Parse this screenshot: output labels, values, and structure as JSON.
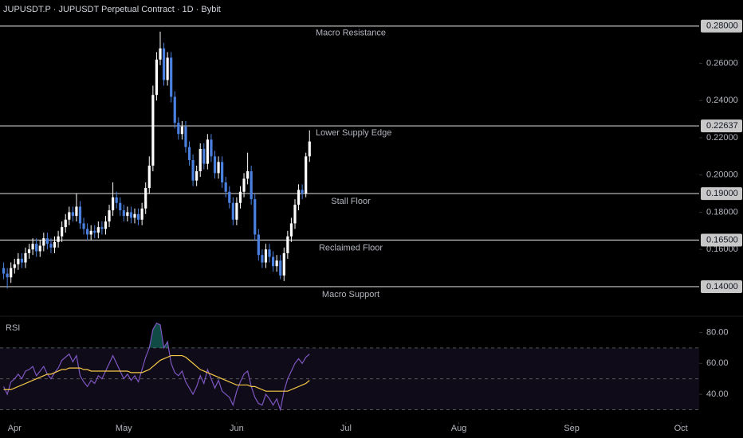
{
  "chart_data": [
    {
      "type": "candlestick",
      "title": "JUPUSDT.P · JUPUSDT Perpetual Contract · 1D · Bybit",
      "x": [
        -3,
        -2,
        -1,
        0,
        1,
        2,
        3,
        4,
        5,
        6,
        7,
        8,
        9,
        10,
        11,
        12,
        13,
        14,
        15,
        16,
        17,
        18,
        19,
        20,
        21,
        22,
        23,
        24,
        25,
        26,
        27,
        28,
        29,
        30,
        31,
        32,
        33,
        34,
        35,
        36,
        37,
        38,
        39,
        40,
        41,
        42,
        43,
        44,
        45,
        46,
        47,
        48,
        49,
        50,
        51,
        52,
        53,
        54,
        55,
        56,
        57,
        58,
        59,
        60,
        61,
        62,
        63,
        64,
        65,
        66,
        67,
        68,
        69,
        70,
        71,
        72,
        73,
        74,
        75,
        76,
        77,
        78,
        79,
        80,
        81
      ],
      "open": [
        0.15,
        0.147,
        0.145,
        0.15,
        0.152,
        0.155,
        0.153,
        0.158,
        0.16,
        0.163,
        0.159,
        0.162,
        0.166,
        0.163,
        0.161,
        0.164,
        0.167,
        0.172,
        0.176,
        0.18,
        0.178,
        0.183,
        0.174,
        0.171,
        0.168,
        0.17,
        0.169,
        0.172,
        0.171,
        0.175,
        0.181,
        0.188,
        0.185,
        0.181,
        0.178,
        0.18,
        0.177,
        0.179,
        0.176,
        0.182,
        0.193,
        0.205,
        0.243,
        0.262,
        0.268,
        0.251,
        0.263,
        0.242,
        0.228,
        0.222,
        0.226,
        0.215,
        0.208,
        0.197,
        0.202,
        0.214,
        0.206,
        0.219,
        0.21,
        0.201,
        0.207,
        0.196,
        0.191,
        0.185,
        0.176,
        0.185,
        0.191,
        0.198,
        0.202,
        0.187,
        0.168,
        0.157,
        0.153,
        0.16,
        0.156,
        0.151,
        0.154,
        0.146,
        0.158,
        0.167,
        0.174,
        0.184,
        0.192,
        0.19,
        0.21
      ],
      "high": [
        0.153,
        0.15,
        0.153,
        0.155,
        0.158,
        0.158,
        0.161,
        0.163,
        0.166,
        0.166,
        0.165,
        0.169,
        0.169,
        0.166,
        0.167,
        0.17,
        0.175,
        0.179,
        0.183,
        0.183,
        0.19,
        0.186,
        0.177,
        0.174,
        0.173,
        0.173,
        0.175,
        0.175,
        0.178,
        0.184,
        0.196,
        0.191,
        0.188,
        0.184,
        0.183,
        0.183,
        0.182,
        0.182,
        0.185,
        0.196,
        0.21,
        0.248,
        0.266,
        0.277,
        0.271,
        0.266,
        0.266,
        0.245,
        0.231,
        0.229,
        0.229,
        0.218,
        0.211,
        0.205,
        0.217,
        0.217,
        0.222,
        0.222,
        0.213,
        0.21,
        0.21,
        0.199,
        0.194,
        0.188,
        0.188,
        0.194,
        0.201,
        0.212,
        0.205,
        0.19,
        0.171,
        0.16,
        0.163,
        0.163,
        0.159,
        0.157,
        0.157,
        0.161,
        0.17,
        0.177,
        0.187,
        0.195,
        0.195,
        0.212,
        0.224
      ],
      "low": [
        0.144,
        0.139,
        0.142,
        0.147,
        0.149,
        0.15,
        0.15,
        0.155,
        0.157,
        0.156,
        0.156,
        0.159,
        0.16,
        0.158,
        0.158,
        0.161,
        0.164,
        0.169,
        0.173,
        0.175,
        0.175,
        0.171,
        0.168,
        0.165,
        0.165,
        0.166,
        0.166,
        0.168,
        0.168,
        0.172,
        0.178,
        0.182,
        0.178,
        0.175,
        0.175,
        0.174,
        0.174,
        0.173,
        0.173,
        0.179,
        0.19,
        0.202,
        0.24,
        0.259,
        0.248,
        0.248,
        0.239,
        0.225,
        0.219,
        0.219,
        0.212,
        0.205,
        0.194,
        0.194,
        0.199,
        0.203,
        0.203,
        0.207,
        0.198,
        0.198,
        0.193,
        0.188,
        0.182,
        0.173,
        0.173,
        0.182,
        0.188,
        0.195,
        0.184,
        0.165,
        0.154,
        0.15,
        0.15,
        0.153,
        0.148,
        0.148,
        0.144,
        0.143,
        0.155,
        0.164,
        0.171,
        0.181,
        0.187,
        0.188,
        0.207
      ],
      "close": [
        0.147,
        0.145,
        0.15,
        0.152,
        0.155,
        0.153,
        0.158,
        0.16,
        0.163,
        0.159,
        0.162,
        0.166,
        0.163,
        0.161,
        0.164,
        0.167,
        0.172,
        0.176,
        0.18,
        0.178,
        0.183,
        0.174,
        0.171,
        0.168,
        0.17,
        0.169,
        0.172,
        0.171,
        0.175,
        0.181,
        0.188,
        0.185,
        0.181,
        0.178,
        0.18,
        0.177,
        0.179,
        0.176,
        0.182,
        0.193,
        0.205,
        0.243,
        0.262,
        0.268,
        0.251,
        0.263,
        0.242,
        0.228,
        0.222,
        0.226,
        0.215,
        0.208,
        0.197,
        0.202,
        0.214,
        0.206,
        0.219,
        0.21,
        0.201,
        0.207,
        0.196,
        0.191,
        0.185,
        0.176,
        0.185,
        0.191,
        0.198,
        0.202,
        0.187,
        0.168,
        0.157,
        0.153,
        0.16,
        0.156,
        0.151,
        0.154,
        0.146,
        0.158,
        0.167,
        0.174,
        0.184,
        0.192,
        0.19,
        0.21,
        0.218
      ],
      "up_color": "#ffffff",
      "down_color": "#4a80e0",
      "xlim": [
        -4,
        188
      ],
      "xticks": [
        {
          "value": 0,
          "label": "Apr"
        },
        {
          "value": 30,
          "label": "May"
        },
        {
          "value": 61,
          "label": "Jun"
        },
        {
          "value": 91,
          "label": "Jul"
        },
        {
          "value": 122,
          "label": "Aug"
        },
        {
          "value": 153,
          "label": "Sep"
        },
        {
          "value": 183,
          "label": "Oct"
        }
      ],
      "ylim": [
        0.125,
        0.294
      ],
      "yticks": [
        {
          "value": 0.16,
          "label": "0.16000"
        },
        {
          "value": 0.18,
          "label": "0.18000"
        },
        {
          "value": 0.2,
          "label": "0.20000"
        },
        {
          "value": 0.22,
          "label": "0.22000"
        },
        {
          "value": 0.24,
          "label": "0.24000"
        },
        {
          "value": 0.26,
          "label": "0.26000"
        }
      ],
      "levels": [
        {
          "label": "Macro Resistance",
          "value": 0.28,
          "value_label": "0.28000"
        },
        {
          "label": "Lower Supply Edge",
          "value": 0.22637,
          "value_label": "0.22637"
        },
        {
          "label": "Stall Floor",
          "value": 0.19,
          "value_label": "0.19000"
        },
        {
          "label": "Reclaimed Floor",
          "value": 0.165,
          "value_label": "0.16500"
        },
        {
          "label": "Macro Support",
          "value": 0.14,
          "value_label": "0.14000"
        }
      ],
      "level_color": "#c8c8c8"
    },
    {
      "type": "line",
      "title": "RSI",
      "series": [
        {
          "color": "#7e57c2",
          "values": [
            45,
            40,
            48,
            50,
            53,
            50,
            55,
            56,
            58,
            52,
            55,
            58,
            53,
            50,
            54,
            57,
            62,
            64,
            66,
            61,
            65,
            52,
            48,
            45,
            49,
            47,
            52,
            50,
            55,
            60,
            65,
            60,
            55,
            50,
            53,
            49,
            52,
            48,
            56,
            64,
            70,
            82,
            86,
            85,
            70,
            74,
            60,
            54,
            52,
            55,
            48,
            44,
            40,
            45,
            52,
            47,
            56,
            50,
            44,
            49,
            42,
            40,
            38,
            33,
            42,
            48,
            53,
            55,
            45,
            38,
            34,
            33,
            40,
            37,
            33,
            37,
            30,
            42,
            50,
            55,
            60,
            63,
            60,
            64,
            66
          ]
        },
        {
          "color": "#f7c948",
          "values": [
            43,
            43,
            43,
            44,
            45,
            46,
            47,
            48,
            49,
            50,
            51,
            52,
            53,
            53,
            54,
            55,
            56,
            56,
            57,
            57,
            57,
            57,
            56,
            56,
            55,
            55,
            55,
            55,
            55,
            55,
            55,
            55,
            55,
            55,
            55,
            54,
            54,
            54,
            54,
            55,
            56,
            58,
            60,
            62,
            63,
            64,
            65,
            65,
            65,
            65,
            64,
            62,
            60,
            58,
            56,
            55,
            54,
            53,
            52,
            51,
            50,
            49,
            48,
            47,
            46,
            46,
            46,
            46,
            45,
            45,
            44,
            43,
            42,
            42,
            42,
            42,
            42,
            42,
            42,
            43,
            44,
            45,
            46,
            47,
            49
          ]
        }
      ],
      "ylim": [
        22,
        89
      ],
      "yticks": [
        {
          "value": 40,
          "label": "40.00"
        },
        {
          "value": 60,
          "label": "60.00"
        },
        {
          "value": 80,
          "label": "80.00"
        }
      ],
      "bands": [
        30,
        50,
        70
      ],
      "overbought_color": "#26a69a"
    }
  ]
}
